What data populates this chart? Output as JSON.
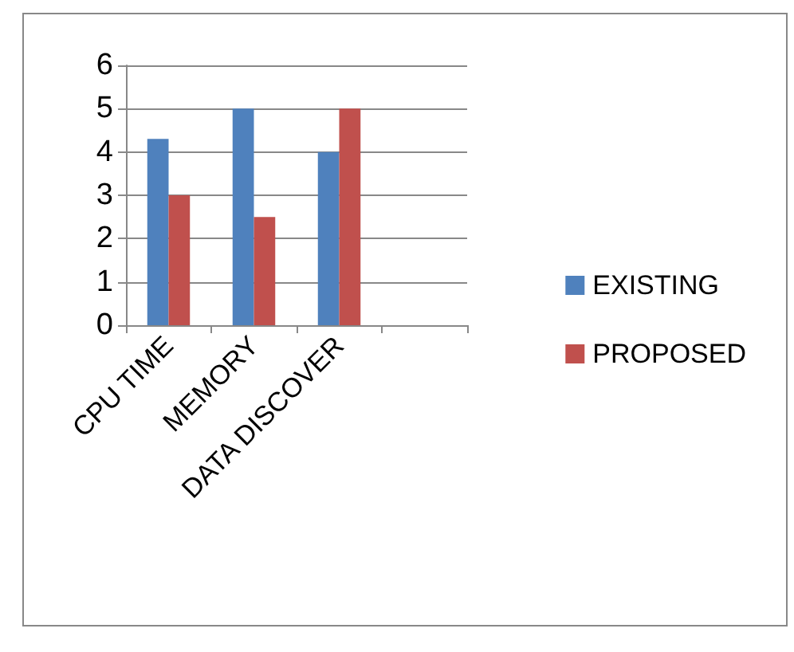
{
  "chart_data": {
    "type": "bar",
    "categories": [
      "CPU TIME",
      "MEMORY",
      "DATA DISCOVER",
      null
    ],
    "series": [
      {
        "name": "EXISTING",
        "color": "#4f81bd",
        "values": [
          4.3,
          5,
          4,
          null
        ]
      },
      {
        "name": "PROPOSED",
        "color": "#c0504d",
        "values": [
          3,
          2.5,
          5,
          null
        ]
      }
    ],
    "ylim": [
      0,
      6
    ],
    "yticks": [
      0,
      1,
      2,
      3,
      4,
      5,
      6
    ],
    "grid": "y",
    "legend": "right"
  }
}
